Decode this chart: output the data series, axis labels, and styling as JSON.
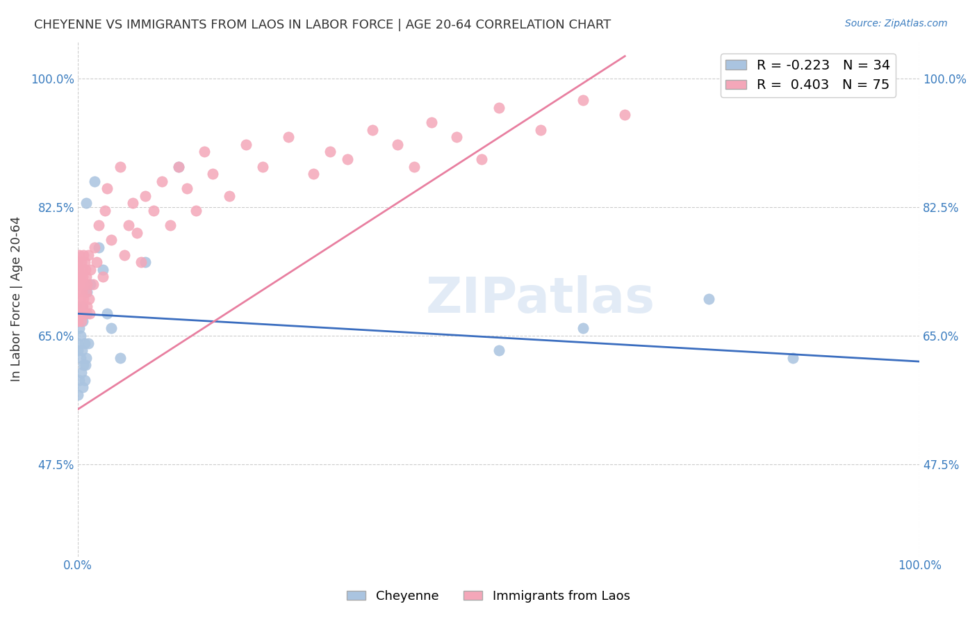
{
  "title": "CHEYENNE VS IMMIGRANTS FROM LAOS IN LABOR FORCE | AGE 20-64 CORRELATION CHART",
  "source": "Source: ZipAtlas.com",
  "xlabel": "",
  "ylabel": "In Labor Force | Age 20-64",
  "xlim": [
    0.0,
    1.0
  ],
  "ylim": [
    0.35,
    1.05
  ],
  "yticks": [
    0.475,
    0.65,
    0.825,
    1.0
  ],
  "ytick_labels": [
    "47.5%",
    "65.0%",
    "82.5%",
    "100.0%"
  ],
  "xtick_labels": [
    "0.0%",
    "100.0%"
  ],
  "xticks": [
    0.0,
    1.0
  ],
  "legend_labels": [
    "Cheyenne",
    "Immigrants from Laos"
  ],
  "blue_R": -0.223,
  "blue_N": 34,
  "pink_R": 0.403,
  "pink_N": 75,
  "blue_color": "#aac4e0",
  "pink_color": "#f4a7b9",
  "blue_line_color": "#3a6dbf",
  "pink_line_color": "#e87fa0",
  "watermark": "ZIPatlas",
  "blue_points_x": [
    0.0,
    0.0,
    0.0,
    0.002,
    0.002,
    0.003,
    0.003,
    0.004,
    0.005,
    0.005,
    0.006,
    0.006,
    0.007,
    0.008,
    0.008,
    0.009,
    0.01,
    0.01,
    0.011,
    0.011,
    0.012,
    0.015,
    0.02,
    0.025,
    0.03,
    0.035,
    0.04,
    0.05,
    0.08,
    0.12,
    0.5,
    0.6,
    0.75,
    0.85
  ],
  "blue_points_y": [
    0.57,
    0.64,
    0.63,
    0.59,
    0.66,
    0.62,
    0.65,
    0.6,
    0.69,
    0.63,
    0.58,
    0.67,
    0.61,
    0.64,
    0.59,
    0.61,
    0.83,
    0.62,
    0.71,
    0.68,
    0.64,
    0.72,
    0.86,
    0.77,
    0.74,
    0.68,
    0.66,
    0.62,
    0.75,
    0.88,
    0.63,
    0.66,
    0.7,
    0.62
  ],
  "pink_points_x": [
    0.0,
    0.0,
    0.0,
    0.0,
    0.0,
    0.001,
    0.001,
    0.002,
    0.002,
    0.002,
    0.003,
    0.003,
    0.003,
    0.004,
    0.004,
    0.005,
    0.005,
    0.005,
    0.006,
    0.006,
    0.006,
    0.007,
    0.007,
    0.007,
    0.008,
    0.008,
    0.009,
    0.01,
    0.01,
    0.011,
    0.011,
    0.012,
    0.013,
    0.014,
    0.015,
    0.018,
    0.02,
    0.022,
    0.025,
    0.03,
    0.032,
    0.035,
    0.04,
    0.05,
    0.055,
    0.06,
    0.065,
    0.07,
    0.075,
    0.08,
    0.09,
    0.1,
    0.11,
    0.12,
    0.13,
    0.14,
    0.15,
    0.16,
    0.18,
    0.2,
    0.22,
    0.25,
    0.28,
    0.3,
    0.32,
    0.35,
    0.38,
    0.4,
    0.42,
    0.45,
    0.48,
    0.5,
    0.55,
    0.6,
    0.65
  ],
  "pink_points_y": [
    0.72,
    0.68,
    0.67,
    0.75,
    0.73,
    0.71,
    0.74,
    0.69,
    0.72,
    0.76,
    0.68,
    0.73,
    0.7,
    0.67,
    0.75,
    0.72,
    0.68,
    0.71,
    0.74,
    0.69,
    0.73,
    0.7,
    0.76,
    0.72,
    0.75,
    0.68,
    0.74,
    0.71,
    0.73,
    0.69,
    0.72,
    0.76,
    0.7,
    0.68,
    0.74,
    0.72,
    0.77,
    0.75,
    0.8,
    0.73,
    0.82,
    0.85,
    0.78,
    0.88,
    0.76,
    0.8,
    0.83,
    0.79,
    0.75,
    0.84,
    0.82,
    0.86,
    0.8,
    0.88,
    0.85,
    0.82,
    0.9,
    0.87,
    0.84,
    0.91,
    0.88,
    0.92,
    0.87,
    0.9,
    0.89,
    0.93,
    0.91,
    0.88,
    0.94,
    0.92,
    0.89,
    0.96,
    0.93,
    0.97,
    0.95
  ]
}
